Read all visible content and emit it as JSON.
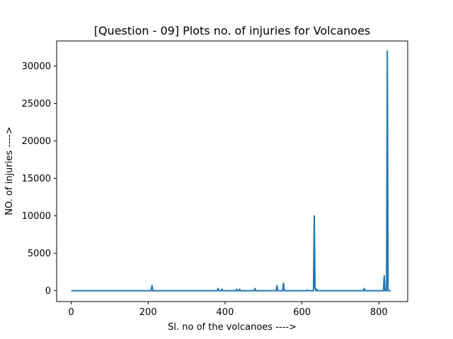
{
  "chart_data": {
    "type": "line",
    "title": "[Question - 09] Plots no. of injuries for Volcanoes",
    "xlabel": "Sl. no of the volcanoes ---->",
    "ylabel": "NO. of injuries ---->",
    "xlim": [
      -38,
      875
    ],
    "ylim": [
      -1450,
      33350
    ],
    "xticks": [
      0,
      200,
      400,
      600,
      800
    ],
    "yticks": [
      0,
      5000,
      10000,
      15000,
      20000,
      25000,
      30000
    ],
    "grid": false,
    "legend": "none",
    "series_color": "#1f77b4",
    "series": [
      {
        "x": [
          0,
          160,
          208,
          210,
          212,
          240,
          380,
          382,
          384,
          390,
          392,
          394,
          400,
          428,
          430,
          432,
          436,
          438,
          440,
          476,
          478,
          480,
          533,
          535,
          537,
          550,
          552,
          554,
          612,
          614,
          616,
          630,
          632,
          634,
          636,
          638,
          640,
          700,
          760,
          762,
          764,
          812,
          814,
          816,
          820,
          822,
          824,
          826,
          828,
          831
        ],
        "y": [
          0,
          0,
          0,
          700,
          0,
          0,
          0,
          300,
          0,
          0,
          200,
          0,
          0,
          0,
          200,
          0,
          0,
          200,
          0,
          0,
          300,
          0,
          0,
          700,
          0,
          0,
          1000,
          0,
          0,
          100,
          0,
          0,
          10000,
          500,
          0,
          200,
          0,
          0,
          0,
          300,
          0,
          0,
          2000,
          0,
          0,
          32000,
          0,
          0,
          0,
          0
        ]
      }
    ]
  }
}
